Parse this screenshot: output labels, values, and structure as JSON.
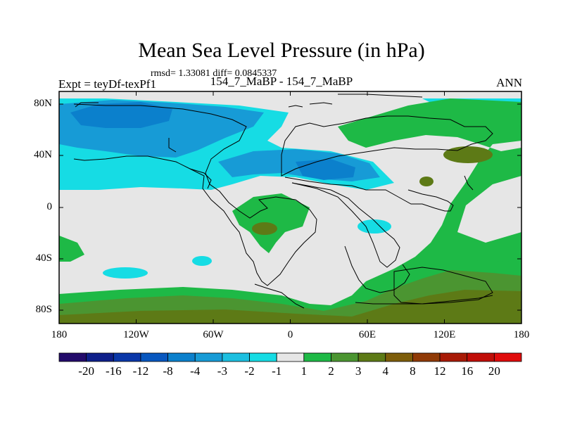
{
  "title": "Mean Sea Level Pressure (in hPa)",
  "stats": "rmsd= 1.33081 diff= 0.0845337",
  "experiment_label": "Expt = teyDf-texPf1",
  "case_label": "154_7_MaBP - 154_7_MaBP",
  "season": "ANN",
  "y_ticks": [
    "80N",
    "40N",
    "0",
    "40S",
    "80S"
  ],
  "x_ticks": [
    "180",
    "120W",
    "60W",
    "0",
    "60E",
    "120E",
    "180"
  ],
  "colorbar": {
    "labels": [
      "-20",
      "-16",
      "-12",
      "-8",
      "-4",
      "-3",
      "-2",
      "-1",
      "1",
      "2",
      "3",
      "4",
      "8",
      "12",
      "16",
      "20"
    ],
    "colors": [
      "#230b6b",
      "#0e1f8a",
      "#0a37a8",
      "#0857bf",
      "#0b80cc",
      "#179bd6",
      "#1cbfe0",
      "#16dce4",
      "#e6e6e6",
      "#1eb946",
      "#4b9531",
      "#5d7a16",
      "#7d5d0a",
      "#903a06",
      "#a81a06",
      "#c00d07",
      "#e00b0b"
    ]
  },
  "legend": {
    "negative_strong": "#0b80cc",
    "negative_mid": "#179bd6",
    "negative_weak": "#16dce4",
    "neutral": "#e6e6e6",
    "positive_weak": "#1eb946",
    "positive_mid": "#4b9531",
    "positive_strong": "#5d7a16"
  }
}
